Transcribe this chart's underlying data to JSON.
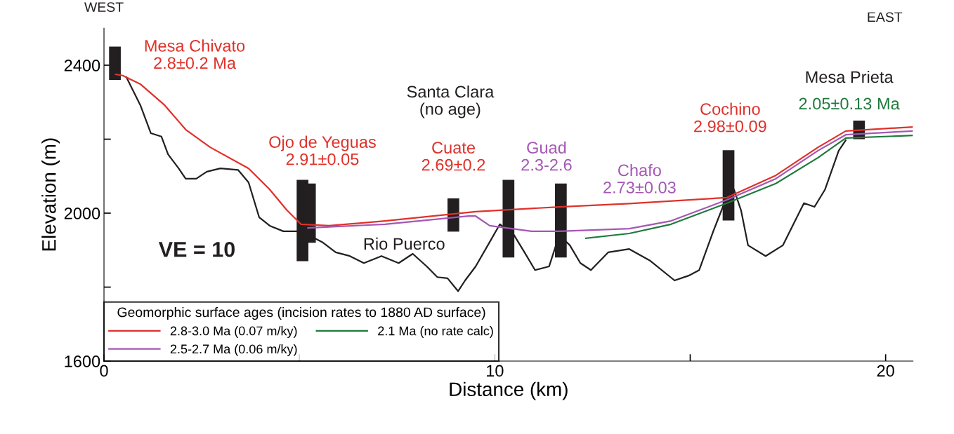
{
  "chart_data": {
    "type": "line",
    "xlabel": "Distance (km)",
    "ylabel": "Elevation (m)",
    "xlim": [
      0,
      20.7
    ],
    "ylim": [
      1600,
      2500
    ],
    "xticks": [
      0,
      {
        "value": 5,
        "label": null
      },
      10,
      {
        "value": 15,
        "label": null
      },
      20
    ],
    "yticks": [
      1600,
      {
        "value": 1800,
        "label": null
      },
      2000,
      {
        "value": 2200,
        "label": null
      },
      2400
    ],
    "grid": false,
    "legend": "bottom left",
    "marker": "none",
    "line_style": "solid",
    "legend_title": "Geomorphic surface ages (incision rates to 1880 AD surface)",
    "series": [
      {
        "color": "#231f20",
        "x": [
          0.57,
          0.93,
          1.2,
          1.47,
          1.64,
          1.91,
          2.09,
          2.36,
          2.63,
          2.98,
          3.43,
          3.7,
          3.97,
          4.24,
          4.59,
          5.04,
          5.58,
          5.93,
          6.29,
          6.65,
          7.1,
          7.54,
          7.9,
          8.26,
          8.53,
          8.79,
          9.06,
          9.24,
          9.51,
          9.87,
          10.13,
          10.49,
          10.76,
          11.03,
          11.39,
          11.65,
          11.92,
          12.19,
          12.46,
          12.9,
          13.44,
          13.98,
          14.6,
          14.96,
          15.23,
          15.59,
          15.94,
          16.12,
          16.3,
          16.48,
          16.93,
          17.37,
          17.73,
          17.91,
          18.18,
          18.45,
          18.8,
          18.98
        ],
        "values": [
          2368,
          2292,
          2216,
          2207,
          2159,
          2121,
          2093,
          2093,
          2112,
          2121,
          2117,
          2083,
          1989,
          1966,
          1951,
          1951,
          1922,
          1894,
          1884,
          1865,
          1884,
          1865,
          1890,
          1856,
          1827,
          1824,
          1789,
          1818,
          1856,
          1922,
          1970,
          1941,
          1894,
          1846,
          1856,
          1941,
          1913,
          1865,
          1846,
          1894,
          1903,
          1871,
          1818,
          1831,
          1846,
          1951,
          2045,
          2064,
          2008,
          1913,
          1884,
          1913,
          1989,
          2027,
          2017,
          2064,
          2169,
          2197
        ]
      },
      {
        "name": "2.8-3.0 Ma (0.07 m/ky)",
        "color": "#e0312a",
        "x": [
          0.3,
          0.48,
          0.93,
          1.55,
          2.09,
          2.72,
          3.7,
          4.24,
          4.68,
          5.04,
          5.76,
          7.19,
          9.51,
          11.65,
          13.44,
          15.94,
          17.19,
          18.27,
          18.98,
          20.68
        ],
        "values": [
          2375,
          2372,
          2349,
          2292,
          2226,
          2178,
          2121,
          2064,
          2008,
          1970,
          1966,
          1979,
          2004,
          2017,
          2026,
          2042,
          2102,
          2178,
          2222,
          2233
        ]
      },
      {
        "name": "2.5-2.7 Ma (0.06 m/ky)",
        "color": "#a557b5",
        "x": [
          5.22,
          7.19,
          9.33,
          9.51,
          9.87,
          10.94,
          11.65,
          13.44,
          14.51,
          15.94,
          17.19,
          18.27,
          18.98,
          20.68
        ],
        "values": [
          1960,
          1970,
          1992,
          1992,
          1966,
          1951,
          1951,
          1958,
          1979,
          2036,
          2093,
          2169,
          2212,
          2222
        ]
      },
      {
        "name": "2.1 Ma (no rate calc)",
        "color": "#1e7a3c",
        "x": [
          12.33,
          13.44,
          14.51,
          15.94,
          17.19,
          18.27,
          18.98,
          20.68
        ],
        "values": [
          1932,
          1945,
          1970,
          2027,
          2080,
          2150,
          2203,
          2210
        ]
      },
      {
        "type": "bar",
        "color": "#231f20",
        "x": [
          0.28,
          5.08,
          5.27,
          8.94,
          10.35,
          11.69,
          15.98,
          19.32
        ],
        "base": [
          2360,
          1870,
          1920,
          1950,
          1880,
          1880,
          1980,
          2200
        ],
        "values": [
          90,
          220,
          160,
          90,
          210,
          200,
          190,
          50
        ]
      }
    ],
    "annotations": [
      "Mesa Chivato\n2.8±0.2 Ma",
      "Ojo de Yeguas\n2.91±0.05",
      "Santa Clara\n(no age)",
      "Cuate\n2.69±0.2",
      "Guad\n2.3-2.6",
      "Chafo\n2.73±0.03",
      "Cochino\n2.98±0.09",
      "Mesa Prieta",
      "2.05±0.13 Ma",
      "Rio Puerco",
      "WEST",
      "EAST",
      "VE = 10"
    ]
  }
}
